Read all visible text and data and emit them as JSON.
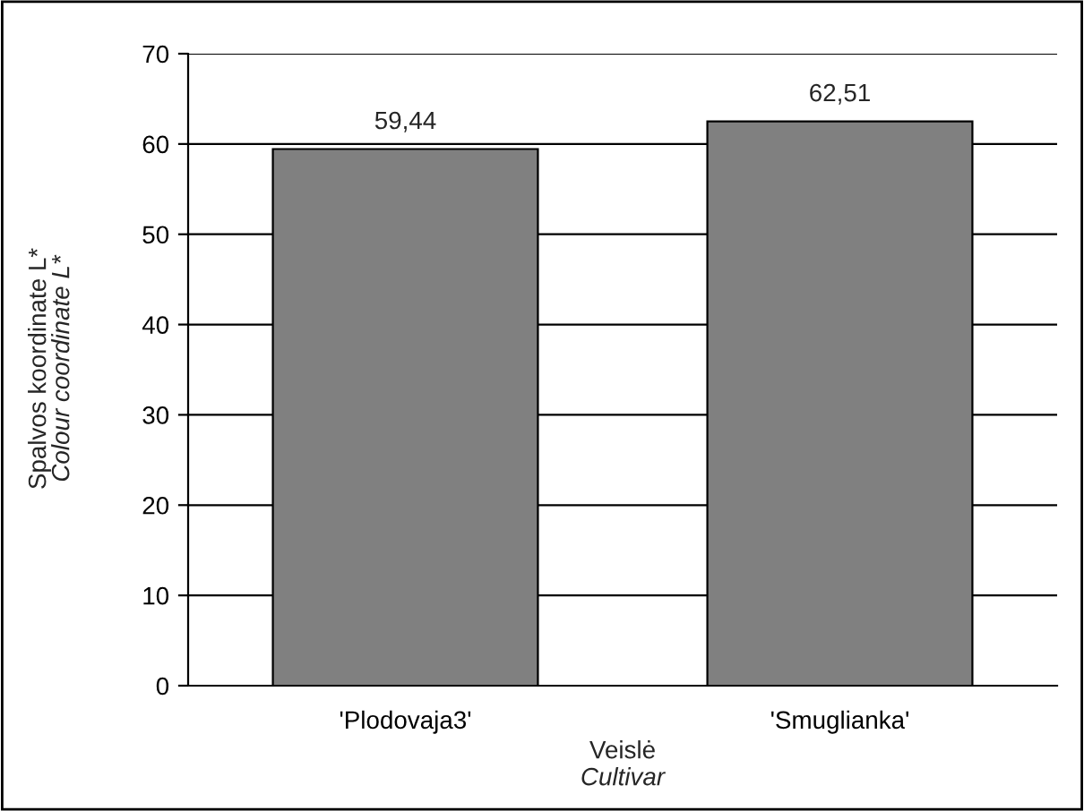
{
  "chart_data": {
    "type": "bar",
    "categories": [
      "'Plodovaja3'",
      "'Smuglianka'"
    ],
    "values": [
      59.44,
      62.51
    ],
    "value_labels": [
      "59,44",
      "62,51"
    ],
    "color": "#808080",
    "ylabel": "Spalvos koordinate L*\nColour coordinate L*",
    "xlabel": "Veislė\nCultivar",
    "ylim": [
      0,
      70
    ],
    "yticks": [
      0,
      10,
      20,
      30,
      40,
      50,
      60,
      70
    ],
    "grid": "y",
    "legend": false
  }
}
